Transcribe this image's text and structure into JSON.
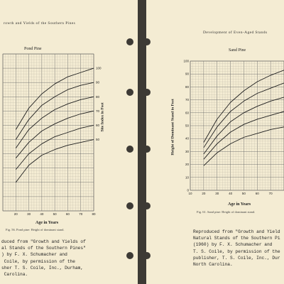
{
  "left_page": {
    "header": "rowth and Yields of the Southern Pines",
    "caption": "Fig. 56. Pond pine: Height of dominant stand.",
    "credit": "duced from \"Growth and Yields of\nal Stands of the Southern Pines\"\n) by F. X. Schumacher and\n Coile, by permission of the\nsher T. S. Coile, Inc., Durham,\n Carolina."
  },
  "right_page": {
    "header": "Development of Even-Aged Stands",
    "caption": "Fig. 61. Sand pine: Height of dominant stand.",
    "credit": "Reproduced from \"Growth and Yield\nNatural Stands of the Southern Pi\n(1960) by F. X. Schumacher and\nT. S. Coile, by permission of the\npublisher, T. S. Coile, Inc., Dur\nNorth Carolina."
  },
  "chart_data": [
    {
      "type": "line",
      "title": "Pond Pine",
      "xlabel": "Age in Years",
      "ylabel": "Site Index in Feet",
      "xlim": [
        10,
        80
      ],
      "ylim": [
        0,
        110
      ],
      "x_ticks": [
        20,
        30,
        40,
        50,
        60,
        70,
        80
      ],
      "right_ticks": [
        50,
        60,
        70,
        80,
        90,
        100
      ],
      "grid": true,
      "series": [
        {
          "name": "50",
          "x": [
            20,
            30,
            40,
            50,
            60,
            70,
            80
          ],
          "y": [
            20,
            32,
            39,
            43,
            46,
            48,
            50
          ]
        },
        {
          "name": "60",
          "x": [
            20,
            30,
            40,
            50,
            60,
            70,
            80
          ],
          "y": [
            29,
            40,
            47,
            52,
            55,
            58,
            60
          ]
        },
        {
          "name": "70",
          "x": [
            20,
            30,
            40,
            50,
            60,
            70,
            80
          ],
          "y": [
            37,
            48,
            56,
            61,
            65,
            68,
            70
          ]
        },
        {
          "name": "80",
          "x": [
            20,
            30,
            40,
            50,
            60,
            70,
            80
          ],
          "y": [
            44,
            57,
            65,
            71,
            75,
            78,
            80
          ]
        },
        {
          "name": "90",
          "x": [
            20,
            30,
            40,
            50,
            60,
            70,
            80
          ],
          "y": [
            50,
            64,
            74,
            80,
            85,
            88,
            90
          ]
        },
        {
          "name": "100",
          "x": [
            20,
            30,
            40,
            50,
            60,
            70,
            80
          ],
          "y": [
            57,
            72,
            82,
            89,
            94,
            97,
            100
          ]
        }
      ]
    },
    {
      "type": "line",
      "title": "Sand Pine",
      "xlabel": "Age in Years",
      "ylabel": "Height of Dominant Stand in Feet",
      "xlim": [
        10,
        80
      ],
      "ylim": [
        0,
        100
      ],
      "x_ticks": [
        10,
        20,
        30,
        40,
        50,
        60,
        70
      ],
      "y_ticks": [
        0,
        10,
        20,
        30,
        40,
        50,
        60,
        70,
        80,
        90,
        100
      ],
      "grid": true,
      "series": [
        {
          "x": [
            20,
            30,
            40,
            50,
            60,
            70,
            80
          ],
          "y": [
            19,
            29,
            36,
            41,
            44,
            47,
            49
          ]
        },
        {
          "x": [
            20,
            30,
            40,
            50,
            60,
            70,
            80
          ],
          "y": [
            24,
            36,
            45,
            51,
            55,
            58,
            61
          ]
        },
        {
          "x": [
            20,
            30,
            40,
            50,
            60,
            70,
            80
          ],
          "y": [
            28,
            42,
            53,
            60,
            65,
            69,
            72
          ]
        },
        {
          "x": [
            20,
            30,
            40,
            50,
            60,
            70,
            80
          ],
          "y": [
            33,
            49,
            61,
            69,
            75,
            79,
            83
          ]
        },
        {
          "x": [
            20,
            30,
            40,
            50,
            60,
            70,
            80
          ],
          "y": [
            37,
            55,
            68,
            77,
            84,
            89,
            93
          ]
        }
      ]
    }
  ]
}
